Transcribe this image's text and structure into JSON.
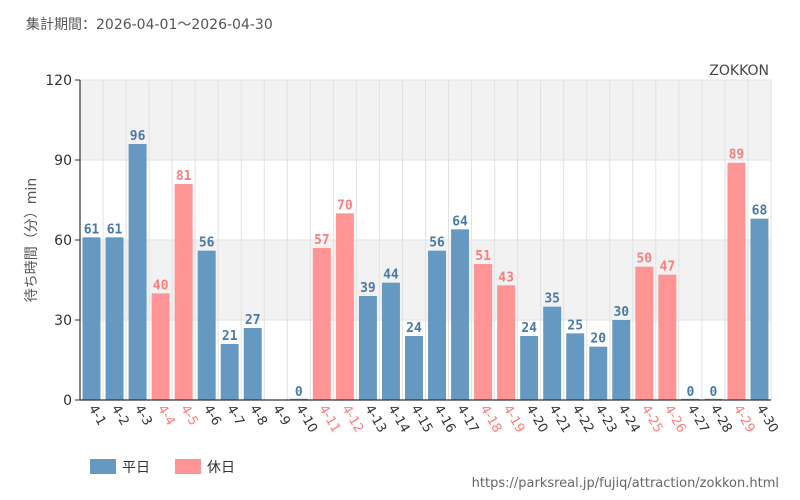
{
  "header": {
    "period": "集計期間：2026-04-01～2026-04-30",
    "attraction": "ZOKKON"
  },
  "footer": {
    "url": "https://parksreal.jp/fujiq/attraction/zokkon.html"
  },
  "colors": {
    "weekday": "#6699c2",
    "holiday": "#ff9494",
    "weekday_text": "#4a79a8",
    "holiday_text": "#ff7c7c"
  },
  "chart_data": {
    "type": "bar",
    "title": "",
    "xlabel": "",
    "ylabel": "待ち時間（分）min",
    "ylim": [
      0,
      120
    ],
    "yticks": [
      0,
      30,
      60,
      90,
      120
    ],
    "grid": true,
    "legend_position": "bottom-left",
    "legend": [
      {
        "key": "weekday",
        "label": "平日"
      },
      {
        "key": "holiday",
        "label": "休日"
      }
    ],
    "categories": [
      "4-1",
      "4-2",
      "4-3",
      "4-4",
      "4-5",
      "4-6",
      "4-7",
      "4-8",
      "4-9",
      "4-10",
      "4-11",
      "4-12",
      "4-13",
      "4-14",
      "4-15",
      "4-16",
      "4-17",
      "4-18",
      "4-19",
      "4-20",
      "4-21",
      "4-22",
      "4-23",
      "4-24",
      "4-25",
      "4-26",
      "4-27",
      "4-28",
      "4-29",
      "4-30"
    ],
    "values": [
      61,
      61,
      96,
      40,
      81,
      56,
      21,
      27,
      null,
      0,
      57,
      70,
      39,
      44,
      24,
      56,
      64,
      51,
      43,
      24,
      35,
      25,
      20,
      30,
      50,
      47,
      0,
      0,
      89,
      68
    ],
    "day_type": [
      "weekday",
      "weekday",
      "weekday",
      "holiday",
      "holiday",
      "weekday",
      "weekday",
      "weekday",
      "weekday",
      "weekday",
      "holiday",
      "holiday",
      "weekday",
      "weekday",
      "weekday",
      "weekday",
      "weekday",
      "holiday",
      "holiday",
      "weekday",
      "weekday",
      "weekday",
      "weekday",
      "weekday",
      "holiday",
      "holiday",
      "weekday",
      "weekday",
      "holiday",
      "weekday"
    ]
  }
}
